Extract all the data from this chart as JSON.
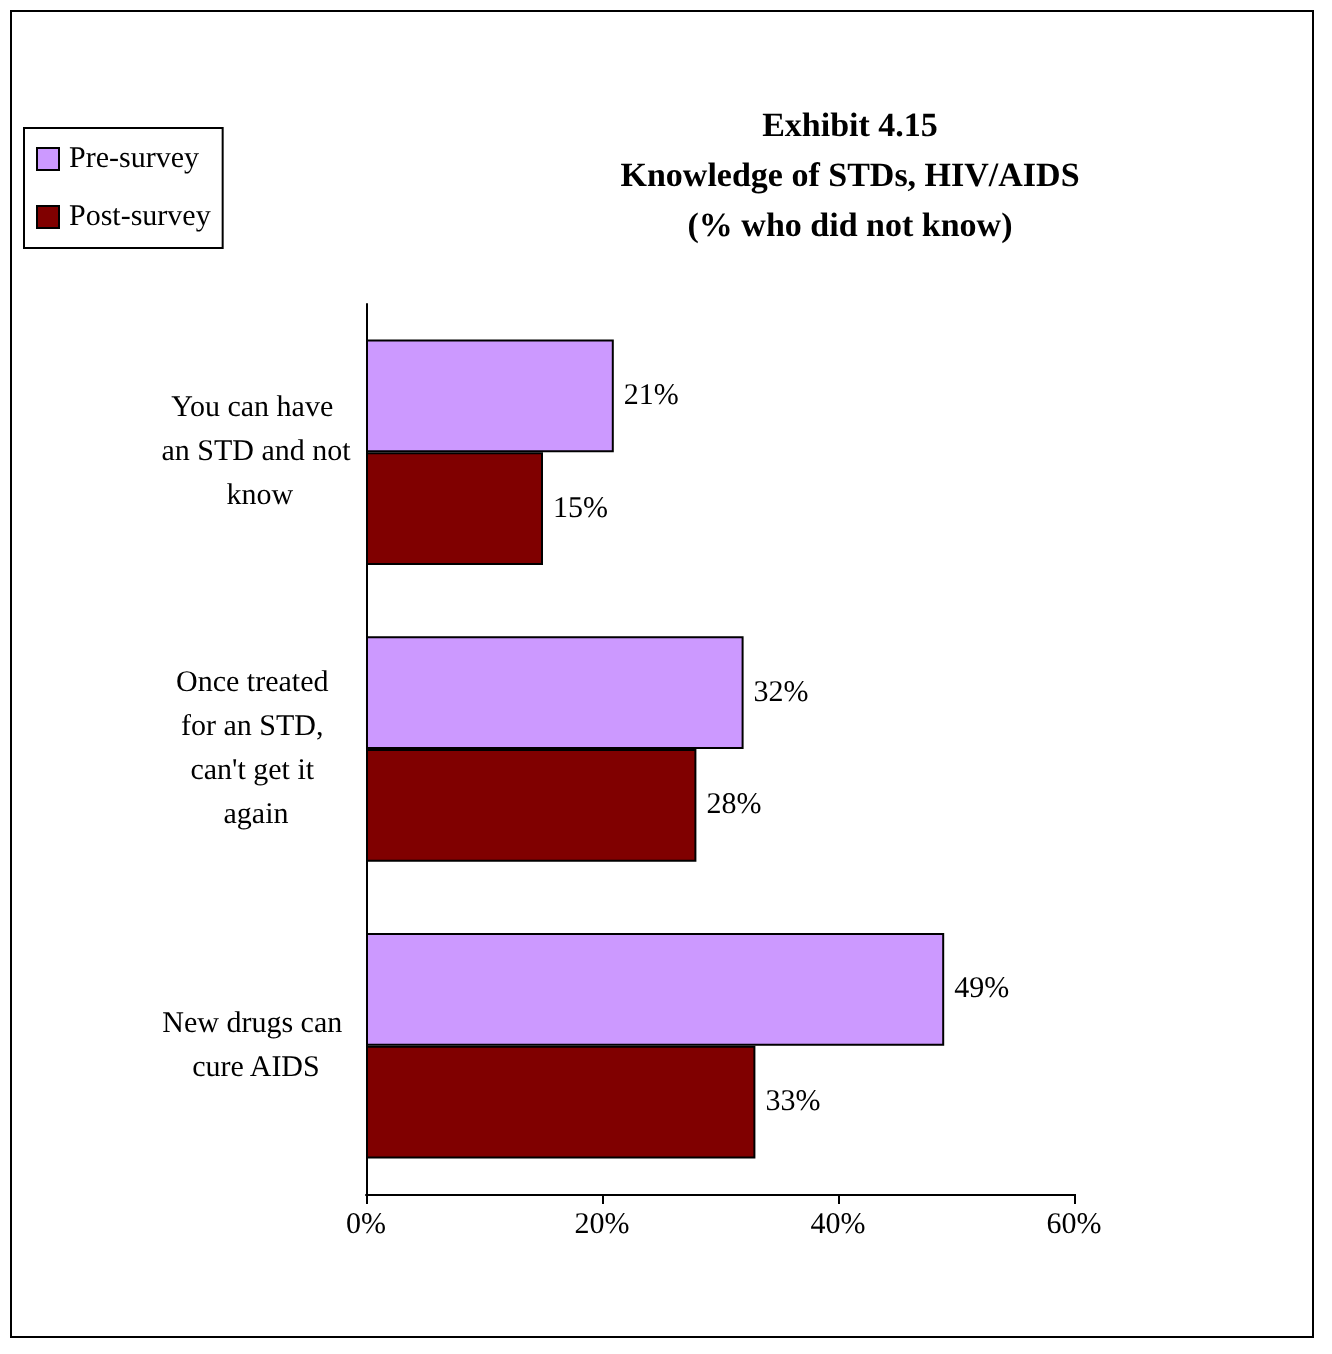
{
  "chart_data": {
    "type": "bar",
    "orientation": "horizontal",
    "title": "Exhibit 4.15\nKnowledge of STDs, HIV/AIDS\n(% who did not know)",
    "categories": [
      "You can have an STD and not know",
      "Once treated for an STD, can't get it again",
      "New drugs can cure AIDS"
    ],
    "series": [
      {
        "name": "Pre-survey",
        "color": "#cc99ff",
        "values": [
          21,
          32,
          49
        ],
        "value_labels": [
          "21%",
          "32%",
          "49%"
        ]
      },
      {
        "name": "Post-survey",
        "color": "#800000",
        "values": [
          15,
          28,
          33
        ],
        "value_labels": [
          "15%",
          "28%",
          "33%"
        ]
      }
    ],
    "xlim": [
      0,
      60
    ],
    "xticks": [
      {
        "value": 0,
        "label": "0%"
      },
      {
        "value": 20,
        "label": "20%"
      },
      {
        "value": 40,
        "label": "40%"
      },
      {
        "value": 60,
        "label": "60%"
      }
    ],
    "grid": false,
    "legend": "top left"
  }
}
